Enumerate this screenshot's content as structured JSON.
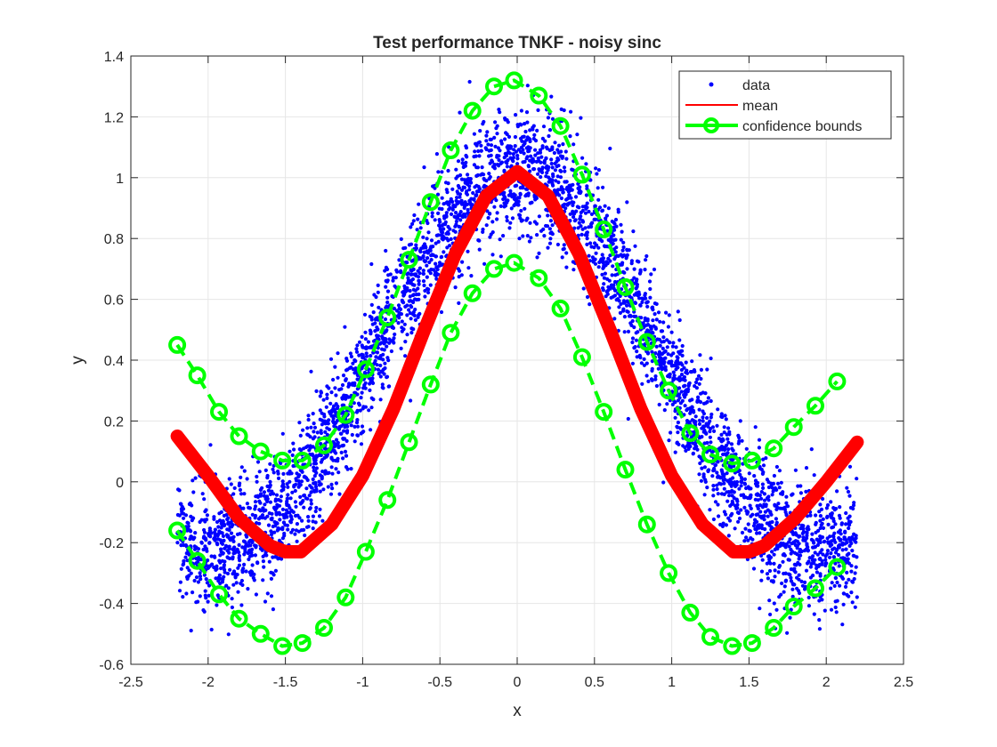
{
  "chart_data": {
    "type": "scatter",
    "title": "Test performance TNKF - noisy sinc",
    "xlabel": "x",
    "ylabel": "y",
    "xlim": [
      -2.5,
      2.5
    ],
    "ylim": [
      -0.6,
      1.4
    ],
    "xticks": [
      -2.5,
      -2,
      -1.5,
      -1,
      -0.5,
      0,
      0.5,
      1,
      1.5,
      2,
      2.5
    ],
    "yticks": [
      -0.6,
      -0.4,
      -0.2,
      0,
      0.2,
      0.4,
      0.6,
      0.8,
      1,
      1.2,
      1.4
    ],
    "xtick_labels": [
      "-2.5",
      "-2",
      "-1.5",
      "-1",
      "-0.5",
      "0",
      "0.5",
      "1",
      "1.5",
      "2",
      "2.5"
    ],
    "ytick_labels": [
      "-0.6",
      "-0.4",
      "-0.2",
      "0",
      "0.2",
      "0.4",
      "0.6",
      "0.8",
      "1",
      "1.2",
      "1.4"
    ],
    "grid": true,
    "legend_position": "top-right",
    "legend": [
      "data",
      "mean",
      "confidence bounds"
    ],
    "series": [
      {
        "name": "data",
        "style": "dots",
        "color": "#0000ff",
        "x_range": [
          -2.2,
          2.2
        ],
        "center_function": "sinc",
        "noise_spread": 0.1,
        "point_count": 4000
      },
      {
        "name": "mean",
        "style": "thick-line",
        "color": "#ff0000",
        "x": [
          -2.2,
          -2.0,
          -1.8,
          -1.6,
          -1.5,
          -1.4,
          -1.2,
          -1.0,
          -0.8,
          -0.6,
          -0.4,
          -0.2,
          0.0,
          0.2,
          0.4,
          0.6,
          0.8,
          1.0,
          1.2,
          1.4,
          1.5,
          1.6,
          1.8,
          2.0,
          2.2
        ],
        "y": [
          0.15,
          0.02,
          -0.12,
          -0.21,
          -0.23,
          -0.23,
          -0.14,
          0.02,
          0.24,
          0.5,
          0.75,
          0.94,
          1.02,
          0.94,
          0.75,
          0.5,
          0.24,
          0.02,
          -0.14,
          -0.23,
          -0.23,
          -0.21,
          -0.12,
          0.0,
          0.13
        ]
      },
      {
        "name": "confidence bounds",
        "style": "dashed-line-circles",
        "color": "#00ff00",
        "upper": {
          "x": [
            -2.2,
            -2.07,
            -1.93,
            -1.8,
            -1.66,
            -1.52,
            -1.39,
            -1.25,
            -1.11,
            -0.98,
            -0.84,
            -0.7,
            -0.56,
            -0.43,
            -0.29,
            -0.15,
            -0.02,
            0.14,
            0.28,
            0.42,
            0.56,
            0.7,
            0.84,
            0.98,
            1.12,
            1.25,
            1.39,
            1.52,
            1.66,
            1.79,
            1.93,
            2.07
          ],
          "y": [
            0.45,
            0.35,
            0.23,
            0.15,
            0.1,
            0.07,
            0.07,
            0.12,
            0.22,
            0.37,
            0.54,
            0.73,
            0.92,
            1.09,
            1.22,
            1.3,
            1.32,
            1.27,
            1.17,
            1.01,
            0.83,
            0.64,
            0.46,
            0.3,
            0.16,
            0.09,
            0.06,
            0.07,
            0.11,
            0.18,
            0.25,
            0.33
          ]
        },
        "lower": {
          "x": [
            -2.2,
            -2.07,
            -1.93,
            -1.8,
            -1.66,
            -1.52,
            -1.39,
            -1.25,
            -1.11,
            -0.98,
            -0.84,
            -0.7,
            -0.56,
            -0.43,
            -0.29,
            -0.15,
            -0.02,
            0.14,
            0.28,
            0.42,
            0.56,
            0.7,
            0.84,
            0.98,
            1.12,
            1.25,
            1.39,
            1.52,
            1.66,
            1.79,
            1.93,
            2.07
          ],
          "y": [
            -0.16,
            -0.26,
            -0.37,
            -0.45,
            -0.5,
            -0.54,
            -0.53,
            -0.48,
            -0.38,
            -0.23,
            -0.06,
            0.13,
            0.32,
            0.49,
            0.62,
            0.7,
            0.72,
            0.67,
            0.57,
            0.41,
            0.23,
            0.04,
            -0.14,
            -0.3,
            -0.43,
            -0.51,
            -0.54,
            -0.53,
            -0.48,
            -0.41,
            -0.35,
            -0.28
          ]
        }
      }
    ]
  }
}
